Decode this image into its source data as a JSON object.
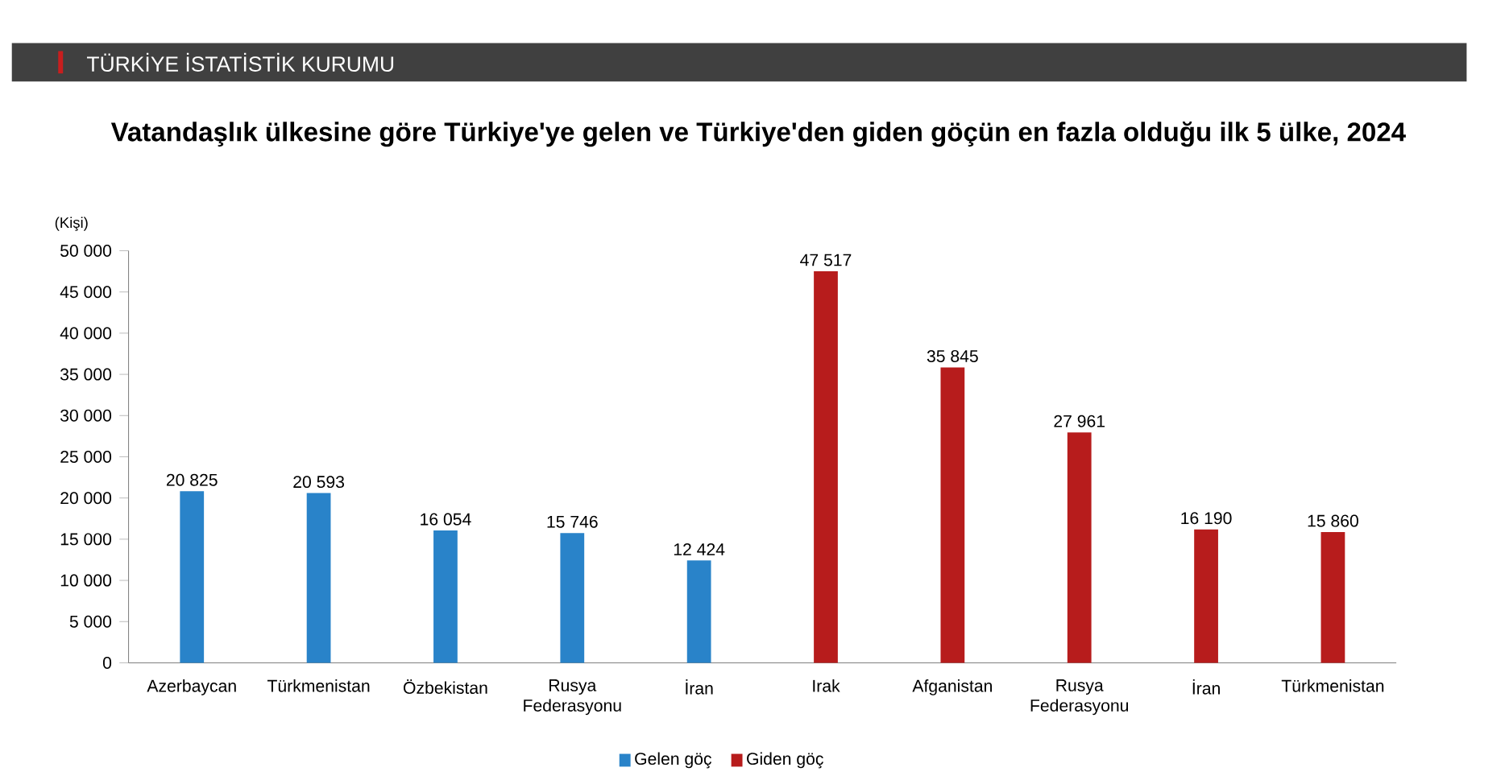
{
  "chart_data": {
    "type": "bar",
    "title": "Vatandaşlık ülkesine göre Türkiye'ye gelen ve Türkiye'den giden göçün en fazla olduğu ilk 5 ülke, 2024",
    "subtitle": "TÜRKİYE İSTATİSTİK KURUMU",
    "ylabel": "(Kişi)",
    "categories": [
      "Azerbaycan",
      "Türkmenistan",
      "Özbekistan",
      "Rusya Federasyonu",
      "İran",
      "Irak",
      "Afganistan",
      "Rusya Federasyonu",
      "İran",
      "Türkmenistan"
    ],
    "series": [
      {
        "name": "Gelen göç",
        "color": "#2983c9",
        "values": [
          20825,
          20593,
          16054,
          15746,
          12424,
          null,
          null,
          null,
          null,
          null
        ],
        "value_labels": [
          "20 825",
          "20 593",
          "16 054",
          "15 746",
          "12 424",
          null,
          null,
          null,
          null,
          null
        ]
      },
      {
        "name": "Giden göç",
        "color": "#b71c1c",
        "values": [
          null,
          null,
          null,
          null,
          null,
          47517,
          35845,
          27961,
          16190,
          15860
        ],
        "value_labels": [
          null,
          null,
          null,
          null,
          null,
          "47 517",
          "35 845",
          "27 961",
          "16 190",
          "15 860"
        ]
      }
    ],
    "ylim": [
      0,
      50000
    ],
    "yticks": [
      0,
      {
        "value": 5000,
        "label": "5 000"
      },
      {
        "value": 10000,
        "label": "10 000"
      },
      {
        "value": 15000,
        "label": "15 000"
      },
      {
        "value": 20000,
        "label": "20 000"
      },
      {
        "value": 25000,
        "label": "25 000"
      },
      {
        "value": 30000,
        "label": "30 000"
      },
      {
        "value": 35000,
        "label": "35 000"
      },
      {
        "value": 40000,
        "label": "40 000"
      },
      {
        "value": 45000,
        "label": "45 000"
      },
      {
        "value": 50000,
        "label": "50 000"
      }
    ],
    "legend": "bottom"
  }
}
